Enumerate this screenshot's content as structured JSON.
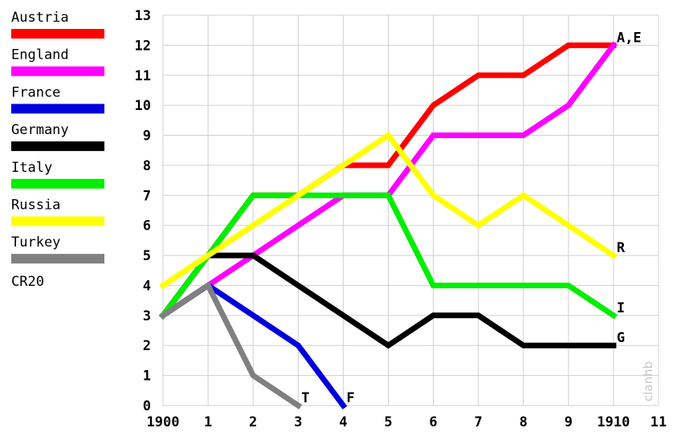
{
  "legend_footer": "CR20",
  "watermark": "clanhb",
  "chart_data": {
    "type": "line",
    "x_tick_labels": [
      "1900",
      "1",
      "2",
      "3",
      "4",
      "5",
      "6",
      "7",
      "8",
      "9",
      "1910",
      "11"
    ],
    "y_tick_labels": [
      "0",
      "1",
      "2",
      "3",
      "4",
      "5",
      "6",
      "7",
      "8",
      "9",
      "10",
      "11",
      "12",
      "13"
    ],
    "xlim": [
      1900,
      1911
    ],
    "ylim": [
      0,
      13
    ],
    "grid": true,
    "legend_position": "left",
    "series": [
      {
        "name": "Austria",
        "color": "#ff0000",
        "x": [
          1900,
          1901,
          1902,
          1903,
          1904,
          1905,
          1906,
          1907,
          1908,
          1909,
          1910
        ],
        "values": [
          3,
          5,
          7,
          7,
          8,
          8,
          10,
          11,
          11,
          12,
          12
        ]
      },
      {
        "name": "England",
        "color": "#ff00ff",
        "x": [
          1900,
          1901,
          1902,
          1903,
          1904,
          1905,
          1906,
          1907,
          1908,
          1909,
          1910
        ],
        "values": [
          3,
          4,
          5,
          6,
          7,
          7,
          9,
          9,
          9,
          10,
          12
        ]
      },
      {
        "name": "France",
        "color": "#0000dd",
        "x": [
          1900,
          1901,
          1902,
          1903,
          1904
        ],
        "values": [
          3,
          4,
          3,
          2,
          0
        ]
      },
      {
        "name": "Germany",
        "color": "#000000",
        "x": [
          1900,
          1901,
          1902,
          1903,
          1904,
          1905,
          1906,
          1907,
          1908,
          1909,
          1910
        ],
        "values": [
          3,
          5,
          5,
          4,
          3,
          2,
          3,
          3,
          2,
          2,
          2
        ]
      },
      {
        "name": "Italy",
        "color": "#00ee00",
        "x": [
          1900,
          1901,
          1902,
          1903,
          1904,
          1905,
          1906,
          1907,
          1908,
          1909,
          1910
        ],
        "values": [
          3,
          5,
          7,
          7,
          7,
          7,
          4,
          4,
          4,
          4,
          3
        ]
      },
      {
        "name": "Russia",
        "color": "#ffff00",
        "x": [
          1900,
          1901,
          1902,
          1903,
          1904,
          1905,
          1906,
          1907,
          1908,
          1909,
          1910
        ],
        "values": [
          4,
          5,
          6,
          7,
          8,
          9,
          7,
          6,
          7,
          6,
          5
        ]
      },
      {
        "name": "Turkey",
        "color": "#808080",
        "x": [
          1900,
          1901,
          1902,
          1903
        ],
        "values": [
          3,
          4,
          1,
          0
        ]
      }
    ],
    "end_labels": [
      {
        "text": "A,E",
        "x": 1910,
        "y": 12
      },
      {
        "text": "R",
        "x": 1910,
        "y": 5
      },
      {
        "text": "I",
        "x": 1910,
        "y": 3
      },
      {
        "text": "G",
        "x": 1910,
        "y": 2
      },
      {
        "text": "T",
        "x": 1903,
        "y": 0
      },
      {
        "text": "F",
        "x": 1904,
        "y": 0
      }
    ]
  }
}
